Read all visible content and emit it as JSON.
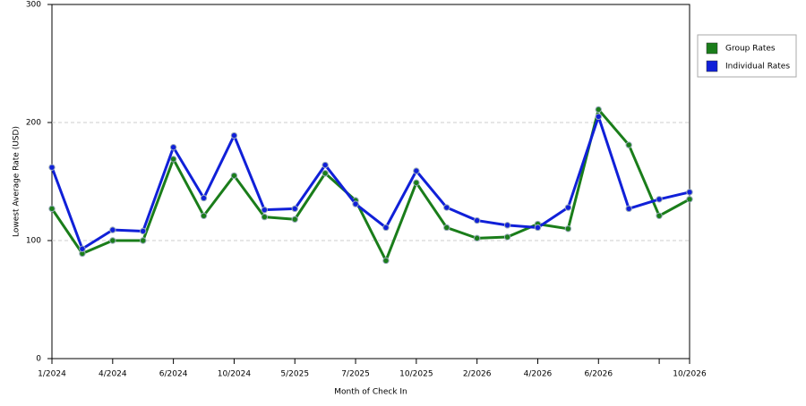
{
  "chart_data": {
    "type": "line",
    "x_label": "Month of Check In",
    "y_label": "Lowest Average Rate (USD)",
    "categories": [
      "1/2024",
      null,
      "4/2024",
      null,
      "6/2024",
      null,
      "10/2024",
      null,
      "5/2025",
      null,
      "7/2025",
      null,
      "10/2025",
      null,
      "2/2026",
      null,
      "4/2026",
      null,
      "6/2026",
      null,
      null,
      "10/2026"
    ],
    "series": [
      {
        "name": "Group Rates",
        "color": "#1a7d1a",
        "values": [
          127,
          89,
          100,
          100,
          169,
          121,
          155,
          120,
          118,
          157,
          134,
          83,
          149,
          111,
          102,
          103,
          114,
          110,
          211,
          181,
          121,
          135
        ]
      },
      {
        "name": "Individual Rates",
        "color": "#1020d8",
        "values": [
          162,
          93,
          109,
          108,
          179,
          136,
          189,
          126,
          127,
          164,
          131,
          111,
          159,
          128,
          117,
          113,
          111,
          128,
          205,
          127,
          135,
          141
        ]
      }
    ],
    "ylim": [
      0,
      300
    ],
    "yticks": [
      0,
      100,
      200,
      300
    ],
    "grid": true,
    "legend": "right"
  }
}
